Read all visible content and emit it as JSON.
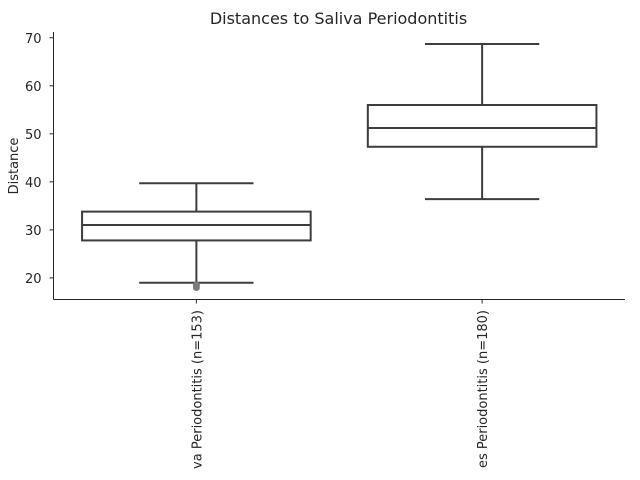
{
  "chart_data": {
    "type": "box",
    "title": "Distances to Saliva Periodontitis",
    "xlabel": "",
    "ylabel": "Distance",
    "ylim": [
      15.5,
      71.2
    ],
    "yticks": [
      20,
      30,
      40,
      50,
      60,
      70
    ],
    "grid": false,
    "categories": [
      "va Periodontitis (n=153)",
      "es Periodontitis (n=180)"
    ],
    "boxes": [
      {
        "whislo": 19.0,
        "q1": 27.8,
        "med": 31.0,
        "q3": 33.8,
        "whishi": 39.7,
        "fliers": [
          18.5,
          18.0
        ]
      },
      {
        "whislo": 36.4,
        "q1": 47.3,
        "med": 51.2,
        "q3": 56.0,
        "whishi": 68.7,
        "fliers": []
      }
    ]
  }
}
